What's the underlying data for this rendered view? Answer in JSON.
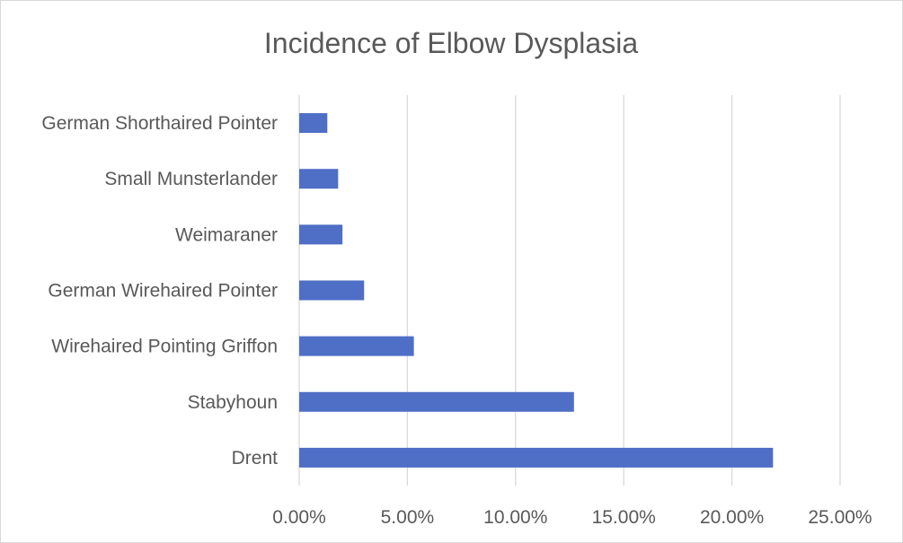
{
  "chart_data": {
    "type": "bar",
    "orientation": "horizontal",
    "title": "Incidence of Elbow Dysplasia",
    "categories": [
      "German Shorthaired Pointer",
      "Small Munsterlander",
      "Weimaraner",
      "German Wirehaired Pointer",
      "Wirehaired Pointing Griffon",
      "Stabyhoun",
      "Drent"
    ],
    "values": [
      1.3,
      1.8,
      2.0,
      3.0,
      5.3,
      12.7,
      21.9
    ],
    "value_unit": "percent",
    "xlim": [
      0,
      25
    ],
    "xticks": [
      0,
      5,
      10,
      15,
      20,
      25
    ],
    "xtick_labels": [
      "0.00%",
      "5.00%",
      "10.00%",
      "15.00%",
      "20.00%",
      "25.00%"
    ],
    "grid": "vertical",
    "legend": "none",
    "bar_color": "#4f6fc6",
    "grid_color": "#d9d9d9",
    "text_color": "#595959"
  }
}
